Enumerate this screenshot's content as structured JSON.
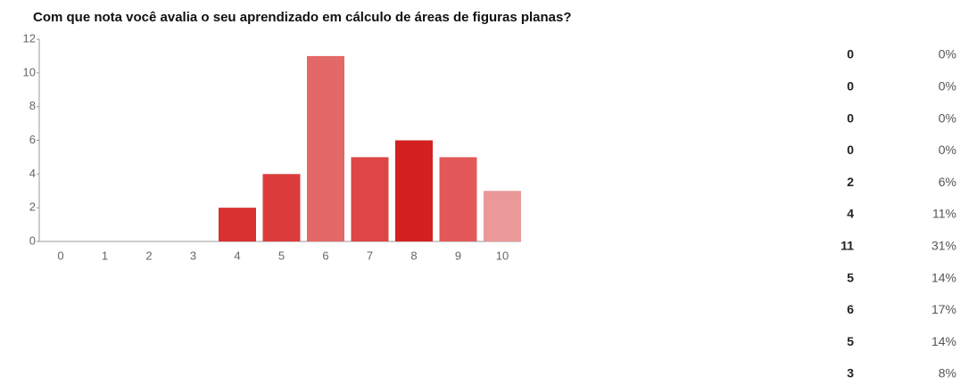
{
  "chart_data": {
    "type": "bar",
    "title": "Com que nota você avalia o seu aprendizado em cálculo de áreas de figuras planas?",
    "categories": [
      "0",
      "1",
      "2",
      "3",
      "4",
      "5",
      "6",
      "7",
      "8",
      "9",
      "10"
    ],
    "values": [
      0,
      0,
      0,
      0,
      2,
      4,
      11,
      5,
      6,
      5,
      3
    ],
    "colors": [
      "#d93030",
      "#d93030",
      "#d93030",
      "#d93030",
      "#d93030",
      "#dc3c3c",
      "#e36868",
      "#de4545",
      "#d42020",
      "#e35858",
      "#ea9898"
    ],
    "ylim": [
      0,
      12
    ],
    "yticks": [
      0,
      2,
      4,
      6,
      8,
      10,
      12
    ],
    "grid": false
  },
  "table": {
    "percents": [
      "0%",
      "0%",
      "0%",
      "0%",
      "6%",
      "11%",
      "31%",
      "14%",
      "17%",
      "14%",
      "8%"
    ]
  }
}
